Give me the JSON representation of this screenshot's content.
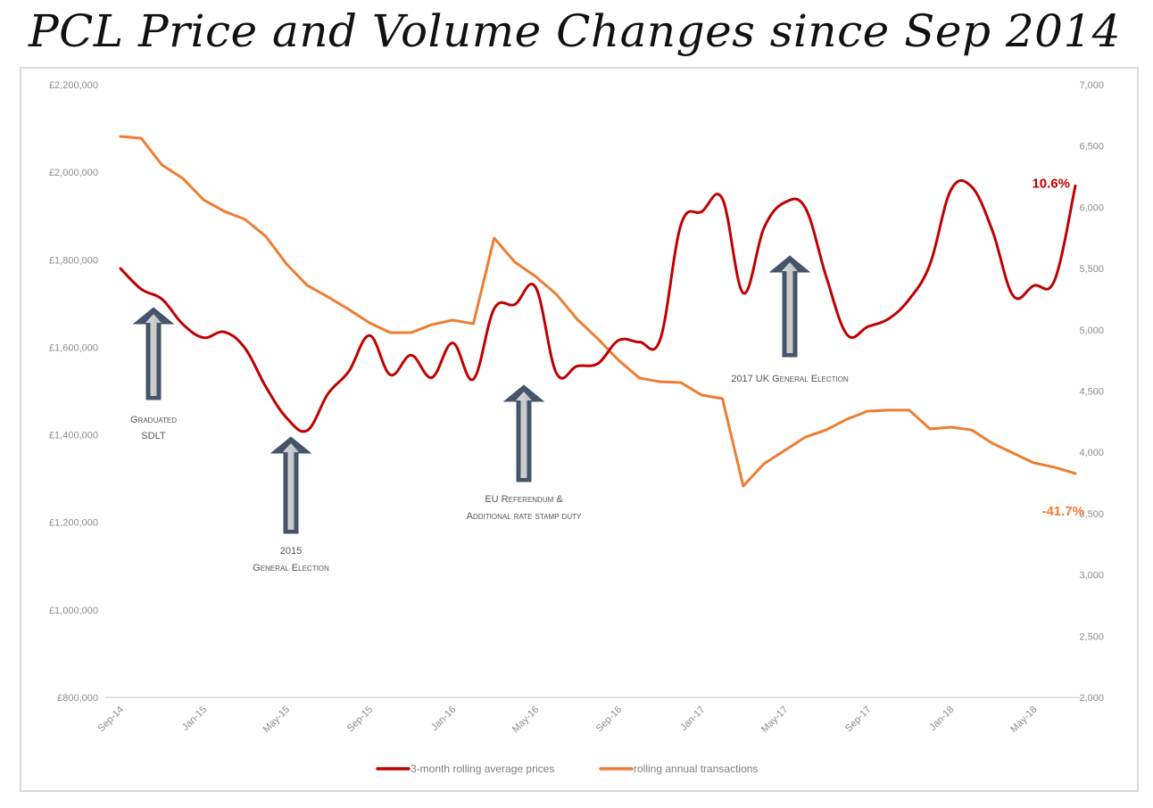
{
  "chart_data": {
    "type": "line",
    "title": "PCL Price and Volume Changes since Sep 2014",
    "x": [
      "Sep-14",
      "Oct-14",
      "Nov-14",
      "Dec-14",
      "Jan-15",
      "Feb-15",
      "Mar-15",
      "Apr-15",
      "May-15",
      "Jun-15",
      "Jul-15",
      "Aug-15",
      "Sep-15",
      "Oct-15",
      "Nov-15",
      "Dec-15",
      "Jan-16",
      "Feb-16",
      "Mar-16",
      "Apr-16",
      "May-16",
      "Jun-16",
      "Jul-16",
      "Aug-16",
      "Sep-16",
      "Oct-16",
      "Nov-16",
      "Dec-16",
      "Jan-17",
      "Feb-17",
      "Mar-17",
      "Apr-17",
      "May-17",
      "Jun-17",
      "Jul-17",
      "Aug-17",
      "Sep-17",
      "Oct-17",
      "Nov-17",
      "Dec-17",
      "Jan-18",
      "Feb-18",
      "Mar-18",
      "Apr-18",
      "May-18",
      "Jun-18",
      "Jul-18"
    ],
    "x_tick_labels": [
      "Sep-14",
      "Jan-15",
      "May-15",
      "Sep-15",
      "Jan-16",
      "May-16",
      "Sep-16",
      "Jan-17",
      "May-17",
      "Sep-17",
      "Jan-18",
      "May-18"
    ],
    "series": [
      {
        "name": "3-month rolling average prices",
        "axis": "left",
        "color": "#c00000",
        "smooth": true,
        "values": [
          1780000,
          1733000,
          1710000,
          1653000,
          1622000,
          1635000,
          1598000,
          1510000,
          1439000,
          1410000,
          1494000,
          1545000,
          1627000,
          1537000,
          1582000,
          1531000,
          1610000,
          1527000,
          1688000,
          1698000,
          1737000,
          1541000,
          1557000,
          1563000,
          1616000,
          1612000,
          1618000,
          1880000,
          1910000,
          1939000,
          1724000,
          1873000,
          1931000,
          1918000,
          1761000,
          1629000,
          1647000,
          1665000,
          1710000,
          1790000,
          1959000,
          1967000,
          1867000,
          1718000,
          1741000,
          1753000,
          1969000
        ],
        "end_label": "10.6%"
      },
      {
        "name": "rolling annual transactions",
        "axis": "right",
        "color": "#ed7d31",
        "smooth": false,
        "values": [
          6578,
          6563,
          6345,
          6236,
          6061,
          5967,
          5901,
          5763,
          5537,
          5362,
          5268,
          5166,
          5057,
          4977,
          4977,
          5042,
          5079,
          5049,
          5748,
          5552,
          5435,
          5290,
          5086,
          4926,
          4751,
          4606,
          4576,
          4569,
          4467,
          4438,
          3725,
          3907,
          4016,
          4125,
          4183,
          4271,
          4336,
          4344,
          4344,
          4191,
          4205,
          4183,
          4074,
          3994,
          3914,
          3878,
          3827
        ],
        "end_label": "-41.7%"
      }
    ],
    "y_left": {
      "label": "",
      "range": [
        800000,
        2200000
      ],
      "ticks": [
        800000,
        1000000,
        1200000,
        1400000,
        1600000,
        1800000,
        2000000,
        2200000
      ],
      "tick_labels": [
        "£800,000",
        "£1,000,000",
        "£1,200,000",
        "£1,400,000",
        "£1,600,000",
        "£1,800,000",
        "£2,000,000",
        "£2,200,000"
      ]
    },
    "y_right": {
      "label": "",
      "range": [
        2000,
        7000
      ],
      "ticks": [
        2000,
        2500,
        3000,
        3500,
        4000,
        4500,
        5000,
        5500,
        6000,
        6500,
        7000
      ],
      "tick_labels": [
        "2,000",
        "2,500",
        "3,000",
        "3,500",
        "4,000",
        "4,500",
        "5,000",
        "5,500",
        "6,000",
        "6,500",
        "7,000"
      ]
    },
    "grid": false,
    "legend": {
      "position": "bottom",
      "entries": [
        "3-month rolling average prices",
        "rolling annual transactions"
      ]
    },
    "annotations": [
      {
        "id": "graduated-sdlt",
        "lines": [
          "Graduated",
          "SDLT"
        ],
        "x": "Oct-14",
        "arrow": "up"
      },
      {
        "id": "general-election-2015",
        "lines": [
          "2015",
          "General Election"
        ],
        "x": "Jun-15",
        "arrow": "up"
      },
      {
        "id": "eu-referendum",
        "lines": [
          "EU Referendum &",
          "Additional rate stamp duty"
        ],
        "x": "Jun-16",
        "arrow": "up"
      },
      {
        "id": "uk-general-election-2017",
        "lines": [
          "2017 UK General Election"
        ],
        "x": "Jun-17",
        "arrow": "up"
      }
    ]
  }
}
